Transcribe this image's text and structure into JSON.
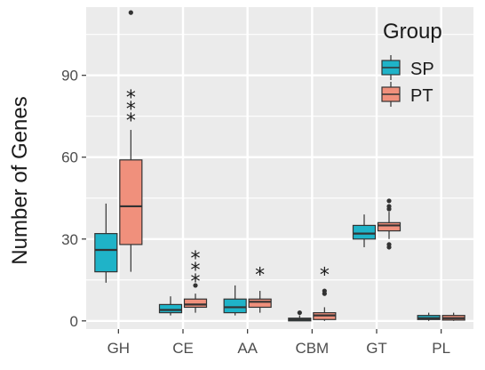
{
  "chart_data": {
    "type": "boxplot",
    "ylabel": "Number of Genes",
    "xlabel": "",
    "ylim": [
      -3,
      115
    ],
    "yticks": [
      0,
      30,
      60,
      90
    ],
    "categories": [
      "GH",
      "CE",
      "AA",
      "CBM",
      "GT",
      "PL"
    ],
    "legend": {
      "title": "Group",
      "position": "top-right",
      "entries": [
        {
          "label": "SP",
          "color": "#1fb3c8"
        },
        {
          "label": "PT",
          "color": "#f0907c"
        }
      ]
    },
    "grid": true,
    "background": "#ebebeb",
    "series": [
      {
        "name": "SP",
        "color": "#1fb3c8",
        "boxes": [
          {
            "category": "GH",
            "min": 14,
            "q1": 18,
            "median": 26,
            "q3": 32,
            "max": 43,
            "outliers": []
          },
          {
            "category": "CE",
            "min": 2,
            "q1": 3,
            "median": 4,
            "q3": 6,
            "max": 9,
            "outliers": []
          },
          {
            "category": "AA",
            "min": 2,
            "q1": 3,
            "median": 5,
            "q3": 8,
            "max": 13,
            "outliers": []
          },
          {
            "category": "CBM",
            "min": 0,
            "q1": 0,
            "median": 0.5,
            "q3": 1,
            "max": 2,
            "outliers": [
              3
            ]
          },
          {
            "category": "GT",
            "min": 27,
            "q1": 30,
            "median": 32,
            "q3": 35,
            "max": 39,
            "outliers": []
          },
          {
            "category": "PL",
            "min": 0,
            "q1": 0.5,
            "median": 1,
            "q3": 2,
            "max": 3,
            "outliers": []
          }
        ]
      },
      {
        "name": "PT",
        "color": "#f0907c",
        "boxes": [
          {
            "category": "GH",
            "min": 18,
            "q1": 28,
            "median": 42,
            "q3": 59,
            "max": 70,
            "outliers": [
              113
            ]
          },
          {
            "category": "CE",
            "min": 3,
            "q1": 5,
            "median": 6,
            "q3": 8,
            "max": 10,
            "outliers": [
              13
            ]
          },
          {
            "category": "AA",
            "min": 3,
            "q1": 5,
            "median": 7,
            "q3": 8,
            "max": 11,
            "outliers": []
          },
          {
            "category": "CBM",
            "min": 0,
            "q1": 0.5,
            "median": 2,
            "q3": 3,
            "max": 5,
            "outliers": [
              10,
              11
            ]
          },
          {
            "category": "GT",
            "min": 30,
            "q1": 33,
            "median": 35,
            "q3": 36,
            "max": 40,
            "outliers": [
              27,
              28,
              41,
              42,
              44
            ]
          },
          {
            "category": "PL",
            "min": 0,
            "q1": 0.3,
            "median": 1,
            "q3": 2,
            "max": 3,
            "outliers": []
          }
        ]
      }
    ],
    "annotations": [
      {
        "category": "GH",
        "text": "***",
        "y": 82
      },
      {
        "category": "CE",
        "text": "***",
        "y": 23
      },
      {
        "category": "AA",
        "text": "*",
        "y": 17
      },
      {
        "category": "CBM",
        "text": "*",
        "y": 17
      }
    ]
  }
}
